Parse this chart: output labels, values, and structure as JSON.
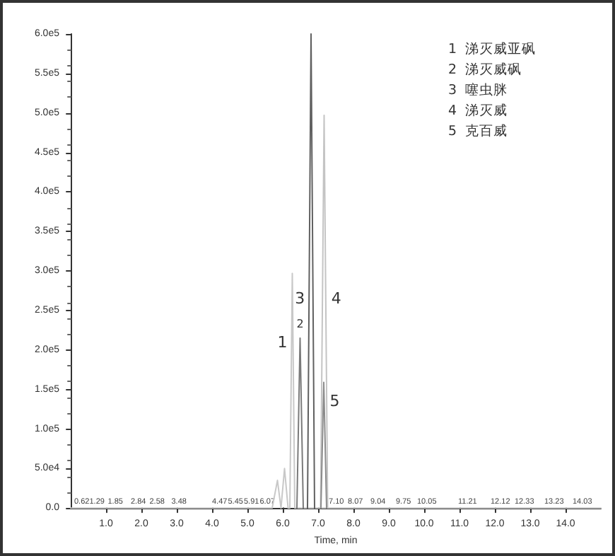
{
  "chart_data": {
    "type": "line",
    "xlabel": "Time, min",
    "xlim": [
      0,
      15
    ],
    "ylim": [
      0,
      600000
    ],
    "xticks": [
      {
        "value": 1,
        "label": "1.0"
      },
      {
        "value": 2,
        "label": "2.0"
      },
      {
        "value": 3,
        "label": "3.0"
      },
      {
        "value": 4,
        "label": "4.0"
      },
      {
        "value": 5,
        "label": "5.0"
      },
      {
        "value": 6,
        "label": "6.0"
      },
      {
        "value": 7,
        "label": "7.0"
      },
      {
        "value": 8,
        "label": "8.0"
      },
      {
        "value": 9,
        "label": "9.0"
      },
      {
        "value": 10,
        "label": "10.0"
      },
      {
        "value": 11,
        "label": "11.0"
      },
      {
        "value": 12,
        "label": "12.0"
      },
      {
        "value": 13,
        "label": "13.0"
      },
      {
        "value": 14,
        "label": "14.0"
      }
    ],
    "yticks": [
      {
        "value": 0,
        "label": "0.0"
      },
      {
        "value": 50000,
        "label": "5.0e4"
      },
      {
        "value": 100000,
        "label": "1.0e5"
      },
      {
        "value": 150000,
        "label": "1.5e5"
      },
      {
        "value": 200000,
        "label": "2.0e5"
      },
      {
        "value": 250000,
        "label": "2.5e5"
      },
      {
        "value": 300000,
        "label": "3.0e5"
      },
      {
        "value": 350000,
        "label": "3.5e5"
      },
      {
        "value": 400000,
        "label": "4.0e5"
      },
      {
        "value": 450000,
        "label": "4.5e5"
      },
      {
        "value": 500000,
        "label": "5.0e5"
      },
      {
        "value": 550000,
        "label": "5.5e5"
      },
      {
        "value": 600000,
        "label": "6.0e5"
      }
    ],
    "grid": false,
    "marker": "none",
    "line_style": "solid",
    "series": [
      {
        "color": "#c8c8c8",
        "x": [
          0,
          5.7,
          5.85,
          5.95,
          6.05,
          6.15,
          6.2,
          6.27,
          6.34,
          15
        ],
        "values": [
          0,
          0,
          35000,
          0,
          50000,
          0,
          0,
          297000,
          0,
          0
        ]
      },
      {
        "color": "#7a7a7a",
        "x": [
          6.4,
          6.49,
          6.58
        ],
        "values": [
          0,
          215000,
          0
        ]
      },
      {
        "color": "#606060",
        "x": [
          6.7,
          6.8,
          6.9
        ],
        "values": [
          0,
          600000,
          0
        ]
      },
      {
        "color": "#c4c4c4",
        "x": [
          7.07,
          7.17,
          7.27
        ],
        "values": [
          0,
          497000,
          0
        ]
      },
      {
        "color": "#8c8c8c",
        "x": [
          7.08,
          7.16,
          7.24
        ],
        "values": [
          0,
          159000,
          0
        ]
      }
    ],
    "annotations": [
      "1  涕灭威亚砜",
      "2  涕灭威砜",
      "3  噻虫脒",
      "4  涕灭威",
      "5  克百威",
      {
        "text": "1",
        "x": 6.25,
        "y": 210000
      },
      {
        "text": "2",
        "x": 6.49,
        "y": 215000
      },
      {
        "text": "3",
        "x": 6.744,
        "y": 265000
      },
      {
        "text": "4",
        "x": 7.217,
        "y": 265000
      },
      {
        "text": "5",
        "x": 7.172,
        "y": 135000
      },
      {
        "text": "0.62",
        "x": 0.1,
        "y": 0
      },
      {
        "text": "1.29",
        "x": 0.53,
        "y": 0
      },
      {
        "text": "1.85",
        "x": 1.05,
        "y": 0
      },
      {
        "text": "2.84",
        "x": 1.7,
        "y": 0
      },
      {
        "text": "2.58",
        "x": 2.23,
        "y": 0
      },
      {
        "text": "3.48",
        "x": 2.85,
        "y": 0
      },
      {
        "text": "4.47",
        "x": 4.0,
        "y": 0
      },
      {
        "text": "5.45",
        "x": 4.45,
        "y": 0
      },
      {
        "text": "5.91",
        "x": 4.9,
        "y": 0
      },
      {
        "text": "6.07",
        "x": 5.35,
        "y": 0
      },
      {
        "text": "7.10",
        "x": 7.3,
        "y": 0
      },
      {
        "text": "8.07",
        "x": 7.84,
        "y": 0
      },
      {
        "text": "9.04",
        "x": 8.48,
        "y": 0
      },
      {
        "text": "9.75",
        "x": 9.2,
        "y": 0
      },
      {
        "text": "10.05",
        "x": 9.8,
        "y": 0
      },
      {
        "text": "11.21",
        "x": 10.96,
        "y": 0
      },
      {
        "text": "12.12",
        "x": 11.88,
        "y": 0
      },
      {
        "text": "12.33",
        "x": 12.56,
        "y": 0
      },
      {
        "text": "13.23",
        "x": 13.4,
        "y": 0
      },
      {
        "text": "14.03",
        "x": 14.2,
        "y": 0
      }
    ]
  }
}
